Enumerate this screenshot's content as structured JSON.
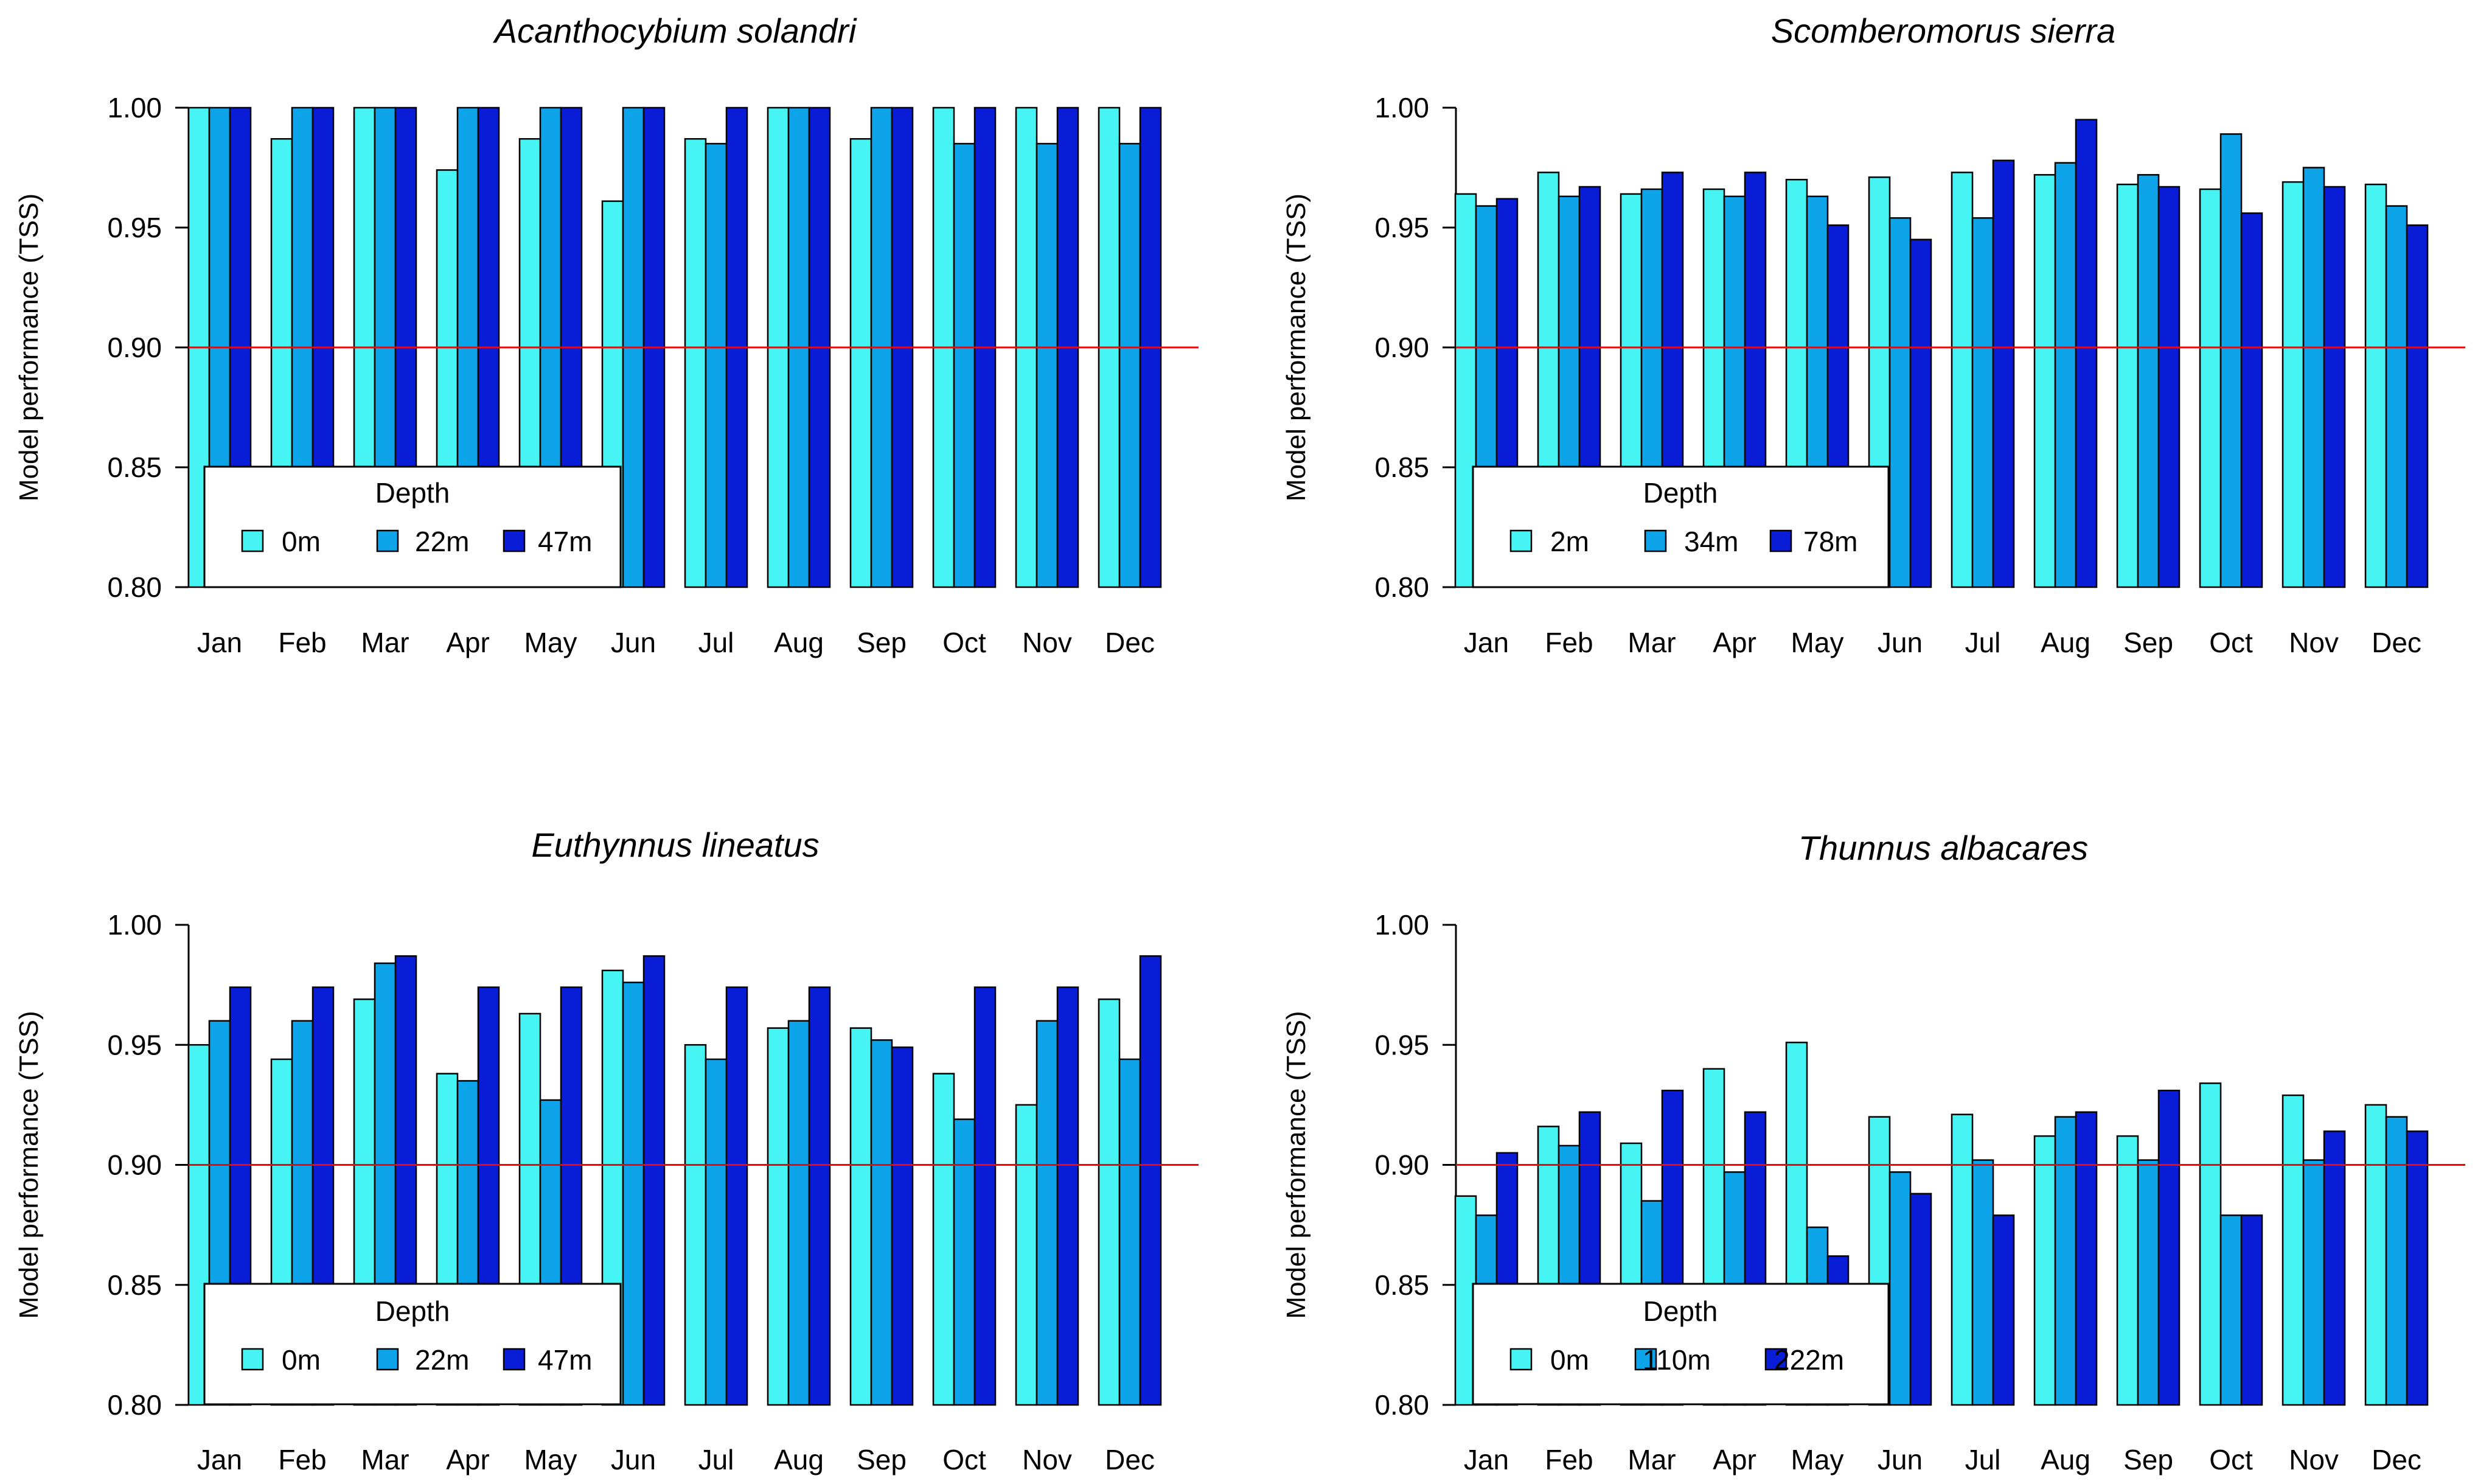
{
  "chart_data": [
    {
      "type": "bar",
      "title": "Acanthocybium solandri",
      "ylabel": "Model performance (TSS)",
      "xlabel": "",
      "ylim": [
        0.8,
        1.0
      ],
      "yticks": [
        "0.80",
        "0.85",
        "0.90",
        "0.95",
        "1.00"
      ],
      "reference_line": 0.9,
      "legend": {
        "title": "Depth",
        "placement": "bottom-left"
      },
      "categories": [
        "Jan",
        "Feb",
        "Mar",
        "Apr",
        "May",
        "Jun",
        "Jul",
        "Aug",
        "Sep",
        "Oct",
        "Nov",
        "Dec"
      ],
      "series": [
        {
          "name": "0m",
          "color": "#47F4F4",
          "values": [
            1.0,
            0.987,
            1.0,
            0.974,
            0.987,
            0.961,
            0.987,
            1.0,
            0.987,
            1.0,
            1.0,
            1.0
          ]
        },
        {
          "name": "22m",
          "color": "#0EA4EA",
          "values": [
            1.0,
            1.0,
            1.0,
            1.0,
            1.0,
            1.0,
            0.985,
            1.0,
            1.0,
            0.985,
            0.985,
            0.985
          ]
        },
        {
          "name": "47m",
          "color": "#0A1DD6",
          "values": [
            1.0,
            1.0,
            1.0,
            1.0,
            1.0,
            1.0,
            1.0,
            1.0,
            1.0,
            1.0,
            1.0,
            1.0
          ]
        }
      ]
    },
    {
      "type": "bar",
      "title": "Scomberomorus sierra",
      "ylabel": "Model performance (TSS)",
      "xlabel": "",
      "ylim": [
        0.8,
        1.0
      ],
      "yticks": [
        "0.80",
        "0.85",
        "0.90",
        "0.95",
        "1.00"
      ],
      "reference_line": 0.9,
      "legend": {
        "title": "Depth",
        "placement": "bottom-left"
      },
      "categories": [
        "Jan",
        "Feb",
        "Mar",
        "Apr",
        "May",
        "Jun",
        "Jul",
        "Aug",
        "Sep",
        "Oct",
        "Nov",
        "Dec"
      ],
      "series": [
        {
          "name": "2m",
          "color": "#47F4F4",
          "values": [
            0.964,
            0.973,
            0.964,
            0.966,
            0.97,
            0.971,
            0.973,
            0.972,
            0.968,
            0.966,
            0.969,
            0.968
          ]
        },
        {
          "name": "34m",
          "color": "#0EA4EA",
          "values": [
            0.959,
            0.963,
            0.966,
            0.963,
            0.963,
            0.954,
            0.954,
            0.977,
            0.972,
            0.989,
            0.975,
            0.959
          ]
        },
        {
          "name": "78m",
          "color": "#0A1DD6",
          "values": [
            0.962,
            0.967,
            0.973,
            0.973,
            0.951,
            0.945,
            0.978,
            0.995,
            0.967,
            0.956,
            0.967,
            0.951
          ]
        }
      ]
    },
    {
      "type": "bar",
      "title": "Euthynnus lineatus",
      "ylabel": "Model performance (TSS)",
      "xlabel": "",
      "ylim": [
        0.8,
        1.0
      ],
      "yticks": [
        "0.80",
        "0.85",
        "0.90",
        "0.95",
        "1.00"
      ],
      "reference_line": 0.9,
      "legend": {
        "title": "Depth",
        "placement": "bottom-left"
      },
      "categories": [
        "Jan",
        "Feb",
        "Mar",
        "Apr",
        "May",
        "Jun",
        "Jul",
        "Aug",
        "Sep",
        "Oct",
        "Nov",
        "Dec"
      ],
      "series": [
        {
          "name": "0m",
          "color": "#47F4F4",
          "values": [
            0.95,
            0.944,
            0.969,
            0.938,
            0.963,
            0.981,
            0.95,
            0.957,
            0.957,
            0.938,
            0.925,
            0.969
          ]
        },
        {
          "name": "22m",
          "color": "#0EA4EA",
          "values": [
            0.96,
            0.96,
            0.984,
            0.935,
            0.927,
            0.976,
            0.944,
            0.96,
            0.952,
            0.919,
            0.96,
            0.944
          ]
        },
        {
          "name": "47m",
          "color": "#0A1DD6",
          "values": [
            0.974,
            0.974,
            0.987,
            0.974,
            0.974,
            0.987,
            0.974,
            0.974,
            0.949,
            0.974,
            0.974,
            0.987
          ]
        }
      ]
    },
    {
      "type": "bar",
      "title": "Thunnus albacares",
      "ylabel": "Model performance (TSS)",
      "xlabel": "",
      "ylim": [
        0.8,
        1.0
      ],
      "yticks": [
        "0.80",
        "0.85",
        "0.90",
        "0.95",
        "1.00"
      ],
      "reference_line": 0.9,
      "legend": {
        "title": "Depth",
        "placement": "bottom-left"
      },
      "categories": [
        "Jan",
        "Feb",
        "Mar",
        "Apr",
        "May",
        "Jun",
        "Jul",
        "Aug",
        "Sep",
        "Oct",
        "Nov",
        "Dec"
      ],
      "series": [
        {
          "name": "0m",
          "color": "#47F4F4",
          "values": [
            0.887,
            0.916,
            0.909,
            0.94,
            0.951,
            0.92,
            0.921,
            0.912,
            0.912,
            0.934,
            0.929,
            0.925
          ]
        },
        {
          "name": "110m",
          "color": "#0EA4EA",
          "values": [
            0.879,
            0.908,
            0.885,
            0.897,
            0.874,
            0.897,
            0.902,
            0.92,
            0.902,
            0.879,
            0.902,
            0.92
          ]
        },
        {
          "name": "222m",
          "color": "#0A1DD6",
          "values": [
            0.905,
            0.922,
            0.931,
            0.922,
            0.862,
            0.888,
            0.879,
            0.922,
            0.931,
            0.879,
            0.914,
            0.914
          ]
        }
      ]
    }
  ]
}
